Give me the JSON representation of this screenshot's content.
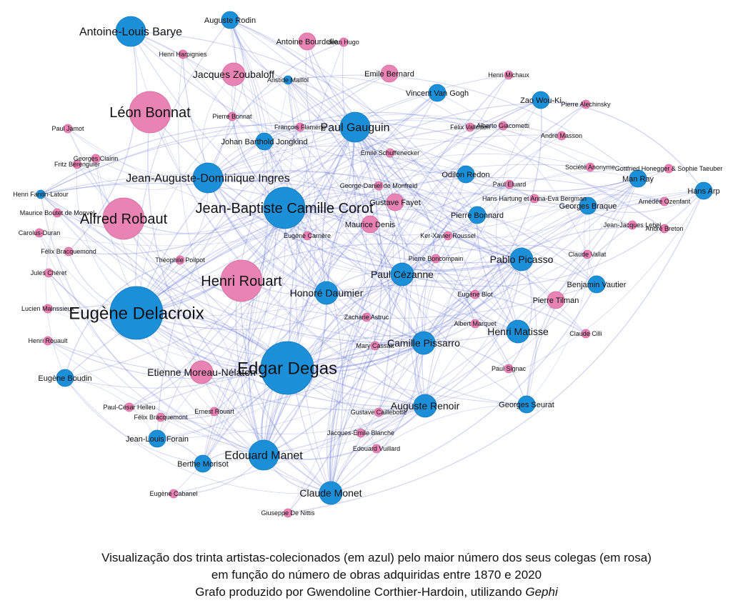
{
  "colors": {
    "blue": "#1b8fd8",
    "pink": "#e983b4",
    "edge": "#6f7fd6"
  },
  "nodes": [
    {
      "id": "rodin",
      "label": "Auguste Rodin",
      "group": "blue",
      "size": "s"
    },
    {
      "id": "barye",
      "label": "Antoine-Louis Barye",
      "group": "blue",
      "size": "l"
    },
    {
      "id": "bourdelle",
      "label": "Antoine Bourdelle",
      "group": "pink",
      "size": "s"
    },
    {
      "id": "zoubaloff",
      "label": "Jacques Zoubaloff",
      "group": "pink",
      "size": "m"
    },
    {
      "id": "maillol",
      "label": "Aristide Maillol",
      "group": "blue",
      "size": "xs"
    },
    {
      "id": "bernard",
      "label": "Emile Bernard",
      "group": "pink",
      "size": "s"
    },
    {
      "id": "vangogh",
      "label": "Vincent Van Gogh",
      "group": "blue",
      "size": "s"
    },
    {
      "id": "bonnat",
      "label": "Léon Bonnat",
      "group": "pink",
      "size": "xl"
    },
    {
      "id": "flameng",
      "label": "François Flameng",
      "group": "pink",
      "size": "xs"
    },
    {
      "id": "gauguin",
      "label": "Paul Gauguin",
      "group": "blue",
      "size": "l"
    },
    {
      "id": "jamot",
      "label": "Paul Jamot",
      "group": "pink",
      "size": "xs"
    },
    {
      "id": "jongkind",
      "label": "Johan Barthold Jongkind",
      "group": "blue",
      "size": "s"
    },
    {
      "id": "clairin",
      "label": "Georges Clairin",
      "group": "pink",
      "size": "xs"
    },
    {
      "id": "ingres",
      "label": "Jean-Auguste-Dominique Ingres",
      "group": "blue",
      "size": "l"
    },
    {
      "id": "schuffenecker",
      "label": "Emile Schuffenecker",
      "group": "pink",
      "size": "xs"
    },
    {
      "id": "monfreid",
      "label": "George-Daniel de Monfreid",
      "group": "pink",
      "size": "xs"
    },
    {
      "id": "redon",
      "label": "Odilon Redon",
      "group": "blue",
      "size": "s"
    },
    {
      "id": "fantin",
      "label": "Henri Fantin-Latour",
      "group": "blue",
      "size": "xs"
    },
    {
      "id": "corot",
      "label": "Jean-Baptiste Camille Corot",
      "group": "blue",
      "size": "xl"
    },
    {
      "id": "fayet",
      "label": "Gustave Fayet",
      "group": "pink",
      "size": "s"
    },
    {
      "id": "robaut",
      "label": "Alfred Robaut",
      "group": "pink",
      "size": "xl"
    },
    {
      "id": "mdenis",
      "label": "Maurice Denis",
      "group": "pink",
      "size": "s"
    },
    {
      "id": "bonnard",
      "label": "Pierre Bonnard",
      "group": "blue",
      "size": "s"
    },
    {
      "id": "carolus",
      "label": "Carolus-Duran",
      "group": "pink",
      "size": "xs"
    },
    {
      "id": "poilpot",
      "label": "Théophile Poilpot",
      "group": "pink",
      "size": "xs"
    },
    {
      "id": "boncompain",
      "label": "Pierre Boncompain",
      "group": "pink",
      "size": "xs"
    },
    {
      "id": "picasso",
      "label": "Pablo Picasso",
      "group": "blue",
      "size": "m"
    },
    {
      "id": "cheret",
      "label": "Jules Chéret",
      "group": "pink",
      "size": "xs"
    },
    {
      "id": "rouart",
      "label": "Henri Rouart",
      "group": "pink",
      "size": "xl"
    },
    {
      "id": "cezanne",
      "label": "Paul Cézanne",
      "group": "blue",
      "size": "m"
    },
    {
      "id": "daumier",
      "label": "Honoré Daumier",
      "group": "blue",
      "size": "m"
    },
    {
      "id": "delacroix",
      "label": "Eugène Delacroix",
      "group": "blue",
      "size": "xxl"
    },
    {
      "id": "mainssieux",
      "label": "Lucien Mainssieux",
      "group": "pink",
      "size": "xs"
    },
    {
      "id": "pissarro",
      "label": "Camille Pissarro",
      "group": "blue",
      "size": "m"
    },
    {
      "id": "matisse",
      "label": "Henri Matisse",
      "group": "blue",
      "size": "m"
    },
    {
      "id": "degas",
      "label": "Edgar Degas",
      "group": "blue",
      "size": "xxl"
    },
    {
      "id": "moreau",
      "label": "Etienne Moreau-Nélaton",
      "group": "pink",
      "size": "m"
    },
    {
      "id": "boudin",
      "label": "Eugène Boudin",
      "group": "blue",
      "size": "s"
    },
    {
      "id": "helleu",
      "label": "Paul-César Helleu",
      "group": "pink",
      "size": "xs"
    },
    {
      "id": "erouart",
      "label": "Ernest Rouart",
      "group": "pink",
      "size": "xs"
    },
    {
      "id": "caillebotte",
      "label": "Gustave Caillebotte",
      "group": "pink",
      "size": "xs"
    },
    {
      "id": "renoir",
      "label": "Auguste Renoir",
      "group": "blue",
      "size": "m"
    },
    {
      "id": "forain",
      "label": "Jean-Louis Forain",
      "group": "blue",
      "size": "s"
    },
    {
      "id": "blanche",
      "label": "Jacques-Émile Blanche",
      "group": "pink",
      "size": "xs"
    },
    {
      "id": "manet",
      "label": "Edouard Manet",
      "group": "blue",
      "size": "l"
    },
    {
      "id": "vuillard",
      "label": "Edouard Vuillard",
      "group": "pink",
      "size": "xs"
    },
    {
      "id": "morisot",
      "label": "Berthe Morisot",
      "group": "blue",
      "size": "s"
    },
    {
      "id": "monet",
      "label": "Claude Monet",
      "group": "blue",
      "size": "m"
    },
    {
      "id": "seurat",
      "label": "Georges Seurat",
      "group": "blue",
      "size": "s"
    },
    {
      "id": "zaowouki",
      "label": "Zao Wou-Ki",
      "group": "blue",
      "size": "s"
    },
    {
      "id": "michaux",
      "label": "Henri Michaux",
      "group": "pink",
      "size": "xs"
    },
    {
      "id": "societe",
      "label": "Société Anonyme",
      "group": "pink",
      "size": "xs"
    },
    {
      "id": "manray",
      "label": "Man Ray",
      "group": "blue",
      "size": "s"
    },
    {
      "id": "arp",
      "label": "Hans Arp",
      "group": "blue",
      "size": "s"
    },
    {
      "id": "eluard",
      "label": "Paul Eluard",
      "group": "pink",
      "size": "xs"
    },
    {
      "id": "braque",
      "label": "Georges Braque",
      "group": "blue",
      "size": "s"
    },
    {
      "id": "breton",
      "label": "André Breton",
      "group": "pink",
      "size": "xs"
    },
    {
      "id": "lebel",
      "label": "Jean-Jacques Lebel",
      "group": "pink",
      "size": "xs"
    },
    {
      "id": "vallat",
      "label": "Claude Vallat",
      "group": "pink",
      "size": "xs"
    },
    {
      "id": "tilman",
      "label": "Pierre Tilman",
      "group": "pink",
      "size": "s"
    },
    {
      "id": "vautier",
      "label": "Benjamin Vautier",
      "group": "blue",
      "size": "s"
    },
    {
      "id": "marquet",
      "label": "Albert Marquet",
      "group": "pink",
      "size": "xs"
    },
    {
      "id": "cassatt",
      "label": "Mary Cassatt",
      "group": "pink",
      "size": "xs"
    },
    {
      "id": "astruc",
      "label": "Zacharie Astruc",
      "group": "pink",
      "size": "xs"
    },
    {
      "id": "blot",
      "label": "Eugène Blot",
      "group": "pink",
      "size": "xs"
    },
    {
      "id": "hartung",
      "label": "Hans Hartung et Anna-Eva Bergman",
      "group": "pink",
      "size": "xs"
    },
    {
      "id": "giacometti",
      "label": "Alberto Giacometti",
      "group": "pink",
      "size": "xs"
    },
    {
      "id": "alechinsky",
      "label": "Pierre Alechinsky",
      "group": "pink",
      "size": "xs"
    },
    {
      "id": "masson",
      "label": "André Masson",
      "group": "pink",
      "size": "xs"
    },
    {
      "id": "signac",
      "label": "Paul Signac",
      "group": "pink",
      "size": "xs"
    },
    {
      "id": "bonnat2",
      "label": "Félix Vallotton",
      "group": "pink",
      "size": "xs"
    },
    {
      "id": "rosso",
      "label": "Fritz Bérenguier",
      "group": "pink",
      "size": "xs"
    },
    {
      "id": "bouchor",
      "label": "Maurice Boutet de Monvel",
      "group": "pink",
      "size": "xs"
    },
    {
      "id": "delaunay",
      "label": "Eugène Carrière",
      "group": "pink",
      "size": "xs"
    },
    {
      "id": "bracquemond",
      "label": "Félix Bracquemond",
      "group": "pink",
      "size": "xs"
    },
    {
      "id": "denis2",
      "label": "Ker-Xavier Roussel",
      "group": "pink",
      "size": "xs"
    },
    {
      "id": "collin",
      "label": "Claude Cilli",
      "group": "pink",
      "size": "xs"
    },
    {
      "id": "ostoia",
      "label": "Amédée Ozenfant",
      "group": "pink",
      "size": "xs"
    },
    {
      "id": "grueinger",
      "label": "Gottfried Honegger & Sophie Taeuber",
      "group": "pink",
      "size": "xs"
    },
    {
      "id": "nittis",
      "label": "Giuseppe De Nittis",
      "group": "pink",
      "size": "xs"
    },
    {
      "id": "cabanel",
      "label": "Eugène Cabanel",
      "group": "pink",
      "size": "xs"
    },
    {
      "id": "hugo",
      "label": "Jean Hugo",
      "group": "pink",
      "size": "xs"
    },
    {
      "id": "harpignies",
      "label": "Henri Harpignies",
      "group": "pink",
      "size": "xs"
    },
    {
      "id": "dubois",
      "label": "Félix Bracquemont",
      "group": "pink",
      "size": "xs"
    },
    {
      "id": "pbonnat",
      "label": "Pierre Bonnat",
      "group": "pink",
      "size": "xs"
    },
    {
      "id": "gosset",
      "label": "Henri Rouault",
      "group": "pink",
      "size": "xs"
    }
  ],
  "caption": {
    "line1": "Visualização dos trinta artistas-colecionados (em azul) pelo maior número dos seus colegas (em rosa)",
    "line2": "em função do número de obras adquiridas entre 1870 e 2020",
    "line3_prefix": "Grafo produzido por Gwendoline Corthier-Hardoin, utilizando ",
    "line3_tool": "Gephi"
  }
}
